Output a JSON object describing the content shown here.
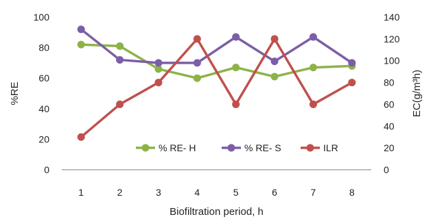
{
  "chart_data": {
    "type": "line",
    "xlabel": "Biofiltration period, h",
    "ylabel_left": "%RE",
    "ylabel_right": "EC(g/m³h)",
    "x": [
      1,
      2,
      3,
      4,
      5,
      6,
      7,
      8
    ],
    "ylim_left": [
      0,
      100
    ],
    "yticks_left": [
      0,
      20,
      40,
      60,
      80,
      100
    ],
    "ylim_right": [
      0,
      140
    ],
    "yticks_right": [
      0,
      20,
      40,
      60,
      80,
      100,
      120,
      140
    ],
    "grid": false,
    "legend_position": "lower-right",
    "series": [
      {
        "name": "% RE- H",
        "axis": "left",
        "color": "#8db347",
        "values": [
          82,
          81,
          66,
          60,
          67,
          61,
          67,
          68
        ]
      },
      {
        "name": "% RE- S",
        "axis": "left",
        "color": "#7b5ea7",
        "values": [
          92,
          72,
          70,
          70,
          87,
          71,
          87,
          70
        ]
      },
      {
        "name": "ILR",
        "axis": "right",
        "color": "#c0504d",
        "values": [
          30,
          60,
          80,
          120,
          60,
          120,
          60,
          80
        ]
      }
    ]
  }
}
